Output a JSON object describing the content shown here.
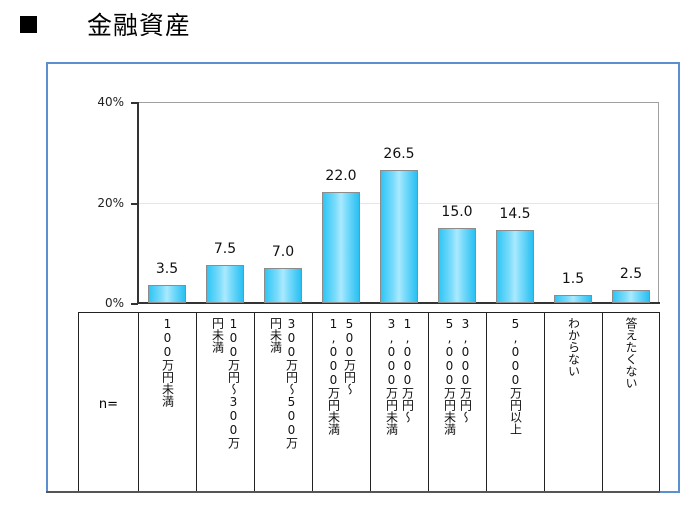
{
  "heading": {
    "bullet": "■",
    "title": "金融資産"
  },
  "chart_data": {
    "type": "bar",
    "title": "金融資産",
    "xlabel": "",
    "ylabel": "",
    "ylim": [
      0,
      40
    ],
    "yticks": [
      "0%",
      "20%",
      "40%"
    ],
    "grid": true,
    "legend": null,
    "row_header": "n=",
    "categories": [
      "100万円未満",
      "100万円～300万円未満",
      "300万円～500万円未満",
      "500万円～1,000万円未満",
      "1,000万円～3,000万円未満",
      "3,000万円～5,000万円未満",
      "5,000万円以上",
      "わからない",
      "答えたくない"
    ],
    "values": [
      3.5,
      7.5,
      7.0,
      22.0,
      26.5,
      15.0,
      14.5,
      1.5,
      2.5
    ],
    "value_labels": [
      "3.5",
      "7.5",
      "7.0",
      "22.0",
      "26.5",
      "15.0",
      "14.5",
      "1.5",
      "2.5"
    ],
    "category_columns": [
      [
        "100万円未満"
      ],
      [
        "100万円～300万",
        "円未満"
      ],
      [
        "300万円～500万",
        "円未満"
      ],
      [
        "500万円～",
        "1,000万円未満"
      ],
      [
        "1,000万円～",
        "3,000万円未満"
      ],
      [
        "3,000万円～",
        "5,000万円未満"
      ],
      [
        "5,000万円以上"
      ],
      [
        "わからない"
      ],
      [
        "答えたくない"
      ]
    ]
  }
}
